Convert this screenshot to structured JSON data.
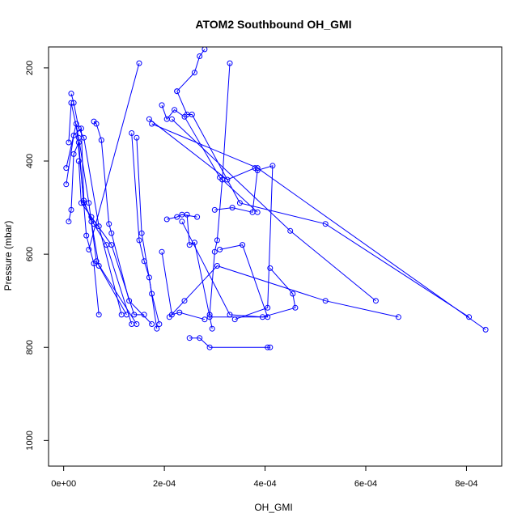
{
  "chart_data": {
    "type": "line",
    "title": "ATOM2 Southbound OH_GMI",
    "xlabel": "OH_GMI",
    "ylabel": "Pressure (mbar)",
    "xlim": [
      -3e-05,
      0.00087
    ],
    "ylim": [
      1055,
      155
    ],
    "y_reversed": true,
    "grid": false,
    "marker": "open-circle",
    "color": "#0000ff",
    "x_ticks": [
      {
        "value": 0,
        "label": "0e+00"
      },
      {
        "value": 0.0002,
        "label": "2e-04"
      },
      {
        "value": 0.0004,
        "label": "4e-04"
      },
      {
        "value": 0.0006,
        "label": "6e-04"
      },
      {
        "value": 0.0008,
        "label": "8e-04"
      }
    ],
    "y_ticks": [
      {
        "value": 200,
        "label": "200"
      },
      {
        "value": 400,
        "label": "400"
      },
      {
        "value": 600,
        "label": "600"
      },
      {
        "value": 800,
        "label": "800"
      },
      {
        "value": 1000,
        "label": "1000"
      }
    ],
    "series": [
      {
        "points": [
          [
            1.5e-05,
            255
          ],
          [
            2e-05,
            275
          ],
          [
            3e-05,
            330
          ],
          [
            4e-05,
            350
          ],
          [
            7e-05,
            540
          ],
          [
            0.000115,
            730
          ]
        ]
      },
      {
        "points": [
          [
            1e-05,
            360
          ],
          [
            1.5e-05,
            275
          ],
          [
            3e-05,
            350
          ],
          [
            5e-05,
            490
          ],
          [
            6.5e-05,
            615
          ],
          [
            0.000145,
            750
          ]
        ]
      },
      {
        "points": [
          [
            5e-06,
            450
          ],
          [
            2e-05,
            345
          ],
          [
            3.5e-05,
            330
          ],
          [
            4e-05,
            485
          ],
          [
            5.5e-05,
            530
          ],
          [
            7e-05,
            625
          ],
          [
            0.000125,
            730
          ]
        ]
      },
      {
        "points": [
          [
            1e-05,
            530
          ],
          [
            1.5e-05,
            505
          ],
          [
            2e-05,
            385
          ],
          [
            3e-05,
            360
          ],
          [
            4.5e-05,
            560
          ],
          [
            6e-05,
            620
          ],
          [
            7e-05,
            730
          ]
        ]
      },
      {
        "points": [
          [
            5e-06,
            415
          ],
          [
            2.5e-05,
            320
          ],
          [
            4e-05,
            490
          ],
          [
            6e-05,
            535
          ],
          [
            8.5e-05,
            580
          ],
          [
            0.000135,
            750
          ]
        ]
      },
      {
        "points": [
          [
            3e-05,
            400
          ],
          [
            3.5e-05,
            490
          ],
          [
            5.5e-05,
            520
          ],
          [
            9.5e-05,
            580
          ],
          [
            0.00014,
            730
          ],
          [
            0.00016,
            730
          ]
        ]
      },
      {
        "points": [
          [
            6e-05,
            315
          ],
          [
            6.5e-05,
            320
          ],
          [
            7.5e-05,
            355
          ],
          [
            9e-05,
            535
          ],
          [
            9.5e-05,
            555
          ],
          [
            0.00013,
            700
          ],
          [
            0.000175,
            750
          ]
        ]
      },
      {
        "points": [
          [
            0.000135,
            340
          ],
          [
            0.00015,
            570
          ],
          [
            0.00016,
            615
          ],
          [
            0.00017,
            650
          ],
          [
            0.000185,
            760
          ]
        ]
      },
      {
        "points": [
          [
            0.000145,
            350
          ],
          [
            0.000155,
            555
          ],
          [
            0.000175,
            685
          ],
          [
            0.00019,
            750
          ]
        ]
      },
      {
        "points": [
          [
            0.00015,
            190
          ],
          [
            5e-05,
            590
          ]
        ]
      },
      {
        "points": [
          [
            0.000195,
            595
          ],
          [
            0.000215,
            730
          ],
          [
            0.00023,
            725
          ],
          [
            0.00028,
            740
          ]
        ]
      },
      {
        "points": [
          [
            0.000205,
            525
          ],
          [
            0.000225,
            520
          ],
          [
            0.000235,
            515
          ],
          [
            0.000265,
            520
          ]
        ]
      },
      {
        "points": [
          [
            0.000245,
            515
          ],
          [
            0.00025,
            580
          ],
          [
            0.00026,
            575
          ],
          [
            0.000295,
            760
          ]
        ]
      },
      {
        "points": [
          [
            0.00017,
            310
          ],
          [
            0.000325,
            440
          ],
          [
            0.00038,
            415
          ]
        ]
      },
      {
        "points": [
          [
            0.000195,
            280
          ],
          [
            0.000205,
            310
          ],
          [
            0.00022,
            290
          ],
          [
            0.00024,
            305
          ],
          [
            0.00031,
            435
          ],
          [
            0.000385,
            510
          ]
        ]
      },
      {
        "points": [
          [
            0.000215,
            310
          ],
          [
            0.00045,
            550
          ],
          [
            0.00062,
            700
          ]
        ]
      },
      {
        "points": [
          [
            0.000175,
            320
          ],
          [
            0.000385,
            415
          ],
          [
            0.000838,
            762
          ]
        ]
      },
      {
        "points": [
          [
            0.000225,
            250
          ],
          [
            0.000245,
            300
          ],
          [
            0.000255,
            300
          ],
          [
            0.00035,
            490
          ],
          [
            0.00052,
            535
          ],
          [
            0.000805,
            735
          ]
        ]
      },
      {
        "points": [
          [
            0.00028,
            160
          ],
          [
            0.00027,
            175
          ],
          [
            0.00026,
            210
          ],
          [
            0.000225,
            250
          ]
        ]
      },
      {
        "points": [
          [
            0.00033,
            190
          ],
          [
            0.000315,
            440
          ],
          [
            0.000305,
            570
          ],
          [
            0.0003,
            595
          ],
          [
            0.00029,
            730
          ]
        ]
      },
      {
        "points": [
          [
            0.0003,
            505
          ],
          [
            0.000335,
            500
          ],
          [
            0.000375,
            510
          ],
          [
            0.000385,
            420
          ],
          [
            0.000415,
            410
          ],
          [
            0.000405,
            715
          ],
          [
            0.00034,
            740
          ]
        ]
      },
      {
        "points": [
          [
            0.00031,
            590
          ],
          [
            0.000355,
            580
          ],
          [
            0.000405,
            735
          ],
          [
            0.00029,
            735
          ]
        ]
      },
      {
        "points": [
          [
            0.000235,
            530
          ],
          [
            0.00033,
            730
          ],
          [
            0.000395,
            735
          ],
          [
            0.00046,
            715
          ],
          [
            0.000455,
            685
          ],
          [
            0.00041,
            630
          ]
        ]
      },
      {
        "points": [
          [
            0.00025,
            780
          ],
          [
            0.00027,
            780
          ],
          [
            0.00029,
            800
          ],
          [
            0.000405,
            800
          ],
          [
            0.00041,
            800
          ]
        ]
      },
      {
        "points": [
          [
            0.00021,
            735
          ],
          [
            0.00024,
            700
          ],
          [
            0.000305,
            625
          ],
          [
            0.00052,
            700
          ],
          [
            0.000665,
            735
          ]
        ]
      }
    ]
  }
}
